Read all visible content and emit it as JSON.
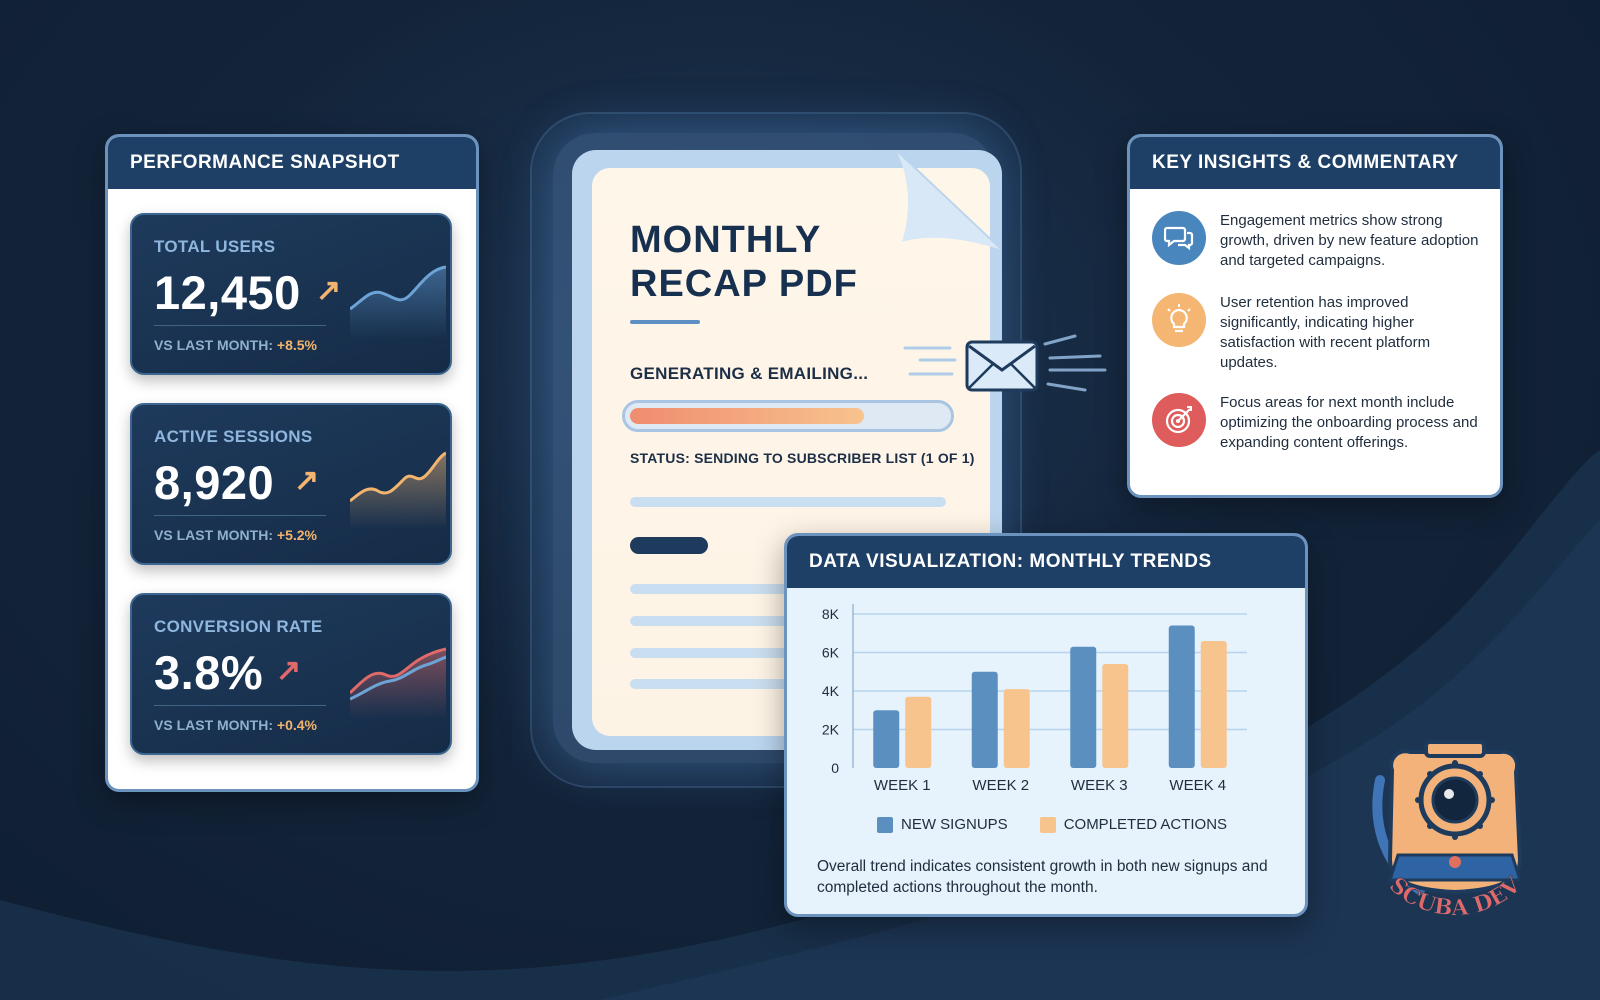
{
  "performance_snapshot": {
    "title": "PERFORMANCE SNAPSHOT",
    "metrics": [
      {
        "label": "TOTAL USERS",
        "value": "12,450",
        "arrow": "↗",
        "foot_prefix": "VS LAST MONTH:",
        "delta": "+8.5%",
        "spark_color": "#5b8fc4"
      },
      {
        "label": "ACTIVE SESSIONS",
        "value": "8,920",
        "arrow": "↗",
        "foot_prefix": "VS LAST MONTH:",
        "delta": "+5.2%",
        "spark_color": "#f2b46f"
      },
      {
        "label": "CONVERSION RATE",
        "value": "3.8%",
        "arrow": "↗",
        "foot_prefix": "VS LAST MONTH:",
        "delta": "+0.4%",
        "spark_color": "#e06a6a"
      }
    ]
  },
  "document": {
    "title_line1": "MONTHLY",
    "title_line2": "RECAP PDF",
    "progress_label": "GENERATING & EMAILING...",
    "progress_fraction": 0.74,
    "status": "STATUS: SENDING TO SUBSCRIBER LIST (1 OF 1)"
  },
  "insights": {
    "title": "KEY INSIGHTS & COMMENTARY",
    "items": [
      {
        "icon": "chat-bubbles-icon",
        "icon_bg": "#4a86be",
        "text": "Engagement metrics show strong growth, driven by new feature adoption and targeted campaigns."
      },
      {
        "icon": "lightbulb-icon",
        "icon_bg": "#f4b672",
        "text": "User retention has improved significantly, indicating higher satisfaction with recent platform updates."
      },
      {
        "icon": "target-icon",
        "icon_bg": "#df5c5c",
        "text": "Focus areas for next month include optimizing the onboarding process and expanding content offerings."
      }
    ]
  },
  "chart_panel": {
    "title": "DATA VISUALIZATION: MONTHLY TRENDS",
    "caption": "Overall trend indicates consistent growth in both new signups and completed actions throughout the month."
  },
  "chart_data": {
    "type": "bar",
    "categories": [
      "WEEK 1",
      "WEEK 2",
      "WEEK 3",
      "WEEK 4"
    ],
    "series": [
      {
        "name": "NEW SIGNUPS",
        "values": [
          3000,
          5000,
          6300,
          7400
        ],
        "color": "#5a8fc0"
      },
      {
        "name": "COMPLETED ACTIONS",
        "values": [
          3700,
          4100,
          5400,
          6600
        ],
        "color": "#f7c48e"
      }
    ],
    "ylim": [
      0,
      8000
    ],
    "yticks": [
      "0",
      "2K",
      "4K",
      "6K",
      "8K"
    ],
    "grid": true,
    "legend_position": "bottom"
  },
  "logo": {
    "text": "SCUBA DEV"
  }
}
